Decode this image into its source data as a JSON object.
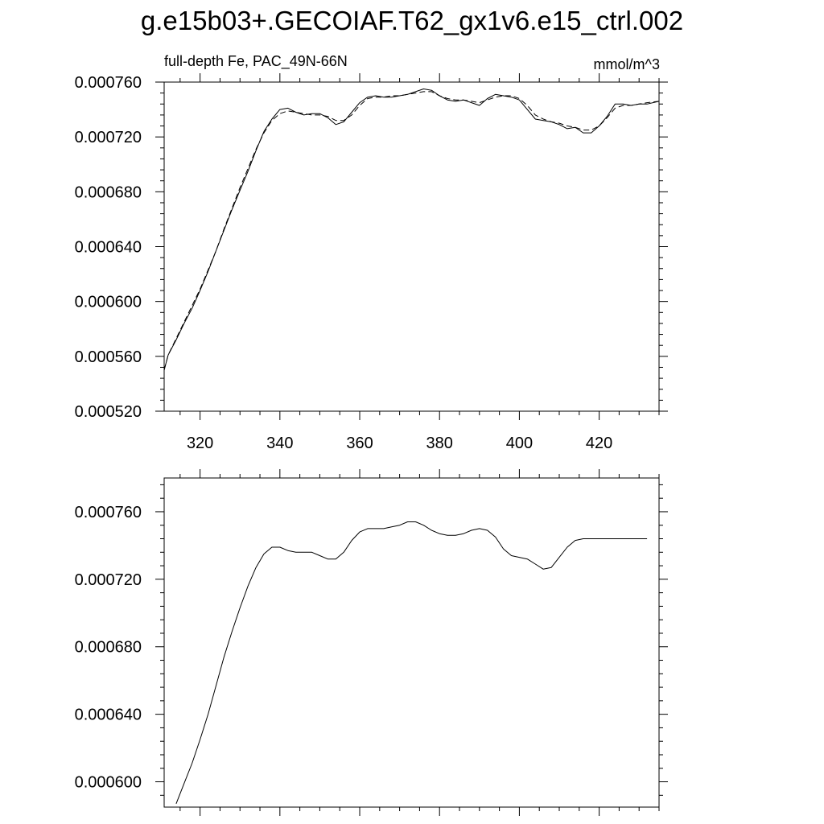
{
  "page": {
    "title": "g.e15b03+.GECOIAF.T62_gx1v6.e15_ctrl.002"
  },
  "chart_data": [
    {
      "type": "line",
      "title": "full-depth Fe, PAC_49N-66N",
      "units": "mmol/m^3",
      "xlim": [
        311,
        435
      ],
      "ylim": [
        0.00052,
        0.00076
      ],
      "xticks": [
        320,
        340,
        360,
        380,
        400,
        420
      ],
      "xtick_labels": [
        "320",
        "340",
        "360",
        "380",
        "400",
        "420"
      ],
      "yticks": [
        0.00052,
        0.00056,
        0.0006,
        0.00064,
        0.00068,
        0.00072,
        0.00076
      ],
      "ytick_labels": [
        "0.000520",
        "0.000560",
        "0.000600",
        "0.000640",
        "0.000680",
        "0.000720",
        "0.000760"
      ],
      "series": [
        {
          "style": "solid",
          "x": [
            311,
            312,
            314,
            316,
            318,
            320,
            322,
            324,
            326,
            328,
            330,
            332,
            334,
            336,
            338,
            340,
            342,
            344,
            346,
            348,
            350,
            352,
            354,
            356,
            358,
            360,
            362,
            364,
            366,
            368,
            370,
            372,
            374,
            376,
            378,
            380,
            382,
            384,
            386,
            388,
            390,
            392,
            394,
            396,
            398,
            400,
            402,
            404,
            406,
            408,
            410,
            412,
            414,
            416,
            418,
            420,
            422,
            424,
            426,
            428,
            430,
            432,
            435
          ],
          "y": [
            0.00055,
            0.000561,
            0.000572,
            0.000584,
            0.000595,
            0.000608,
            0.000622,
            0.000637,
            0.000652,
            0.000667,
            0.000681,
            0.000695,
            0.00071,
            0.000724,
            0.000733,
            0.00074,
            0.000741,
            0.000738,
            0.000736,
            0.000737,
            0.000737,
            0.000734,
            0.000729,
            0.000731,
            0.000738,
            0.000745,
            0.000749,
            0.00075,
            0.000749,
            0.000749,
            0.00075,
            0.000751,
            0.000753,
            0.000755,
            0.000754,
            0.00075,
            0.000747,
            0.000746,
            0.000747,
            0.000745,
            0.000743,
            0.000748,
            0.000751,
            0.00075,
            0.000749,
            0.000747,
            0.00074,
            0.000733,
            0.000732,
            0.000731,
            0.000729,
            0.000726,
            0.000727,
            0.000723,
            0.000723,
            0.000728,
            0.000735,
            0.000744,
            0.000744,
            0.000743,
            0.000744,
            0.000744,
            0.000746
          ]
        },
        {
          "style": "dashed",
          "x": [
            311,
            312,
            314,
            316,
            318,
            320,
            322,
            324,
            326,
            328,
            330,
            332,
            334,
            336,
            338,
            340,
            342,
            344,
            346,
            348,
            350,
            352,
            354,
            356,
            358,
            360,
            362,
            364,
            366,
            368,
            370,
            372,
            374,
            376,
            378,
            380,
            382,
            384,
            386,
            388,
            390,
            392,
            394,
            396,
            398,
            400,
            402,
            404,
            406,
            408,
            410,
            412,
            414,
            416,
            418,
            420,
            422,
            424,
            426,
            428,
            430,
            432,
            435
          ],
          "y": [
            0.00055,
            0.000561,
            0.000573,
            0.000585,
            0.000597,
            0.000609,
            0.000623,
            0.000637,
            0.000653,
            0.000668,
            0.000683,
            0.000697,
            0.000711,
            0.000723,
            0.000732,
            0.000737,
            0.000739,
            0.000738,
            0.000737,
            0.000736,
            0.000736,
            0.000735,
            0.000732,
            0.000732,
            0.000736,
            0.000743,
            0.000748,
            0.000749,
            0.000749,
            0.00075,
            0.00075,
            0.000751,
            0.000752,
            0.000753,
            0.000753,
            0.00075,
            0.000748,
            0.000747,
            0.000747,
            0.000746,
            0.000745,
            0.000747,
            0.000749,
            0.00075,
            0.00075,
            0.000748,
            0.000743,
            0.000736,
            0.000733,
            0.000731,
            0.00073,
            0.000728,
            0.000727,
            0.000725,
            0.000725,
            0.000728,
            0.000734,
            0.000741,
            0.000743,
            0.000743,
            0.000744,
            0.000745,
            0.000746
          ]
        }
      ]
    },
    {
      "type": "line",
      "xlim": [
        311,
        435
      ],
      "ylim": [
        0.000585,
        0.00078
      ],
      "xticks": [
        320,
        340,
        360,
        380,
        400,
        420
      ],
      "xtick_labels": [],
      "yticks": [
        0.0006,
        0.00064,
        0.00068,
        0.00072,
        0.00076
      ],
      "ytick_labels": [
        "0.000600",
        "0.000640",
        "0.000680",
        "0.000720",
        "0.000760"
      ],
      "series": [
        {
          "style": "solid",
          "x": [
            314,
            316,
            318,
            320,
            322,
            324,
            326,
            328,
            330,
            332,
            334,
            336,
            338,
            340,
            342,
            344,
            346,
            348,
            350,
            352,
            354,
            356,
            358,
            360,
            362,
            364,
            366,
            368,
            370,
            372,
            374,
            376,
            378,
            380,
            382,
            384,
            386,
            388,
            390,
            392,
            394,
            396,
            398,
            400,
            402,
            404,
            406,
            408,
            410,
            412,
            414,
            416,
            418,
            420,
            422,
            424,
            426,
            428,
            430,
            432
          ],
          "y": [
            0.000587,
            0.000599,
            0.000611,
            0.000625,
            0.00064,
            0.000657,
            0.000674,
            0.000689,
            0.000703,
            0.000716,
            0.000727,
            0.000735,
            0.000739,
            0.000739,
            0.000737,
            0.000736,
            0.000736,
            0.000736,
            0.000734,
            0.000732,
            0.000732,
            0.000736,
            0.000743,
            0.000748,
            0.00075,
            0.00075,
            0.00075,
            0.000751,
            0.000752,
            0.000754,
            0.000754,
            0.000752,
            0.000749,
            0.000747,
            0.000746,
            0.000746,
            0.000747,
            0.000749,
            0.00075,
            0.000749,
            0.000745,
            0.000738,
            0.000734,
            0.000733,
            0.000732,
            0.000729,
            0.000726,
            0.000727,
            0.000733,
            0.000739,
            0.000743,
            0.000744,
            0.000744,
            0.000744,
            0.000744,
            0.000744,
            0.000744,
            0.000744,
            0.000744,
            0.000744
          ]
        }
      ]
    }
  ]
}
